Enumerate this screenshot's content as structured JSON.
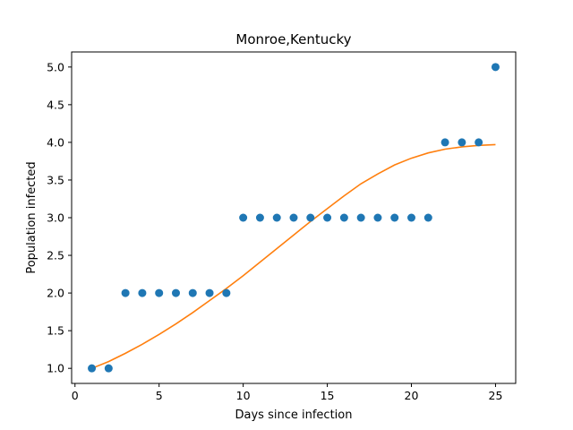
{
  "chart_data": {
    "type": "scatter",
    "title": "Monroe,Kentucky",
    "xlabel": "Days since infection",
    "ylabel": "Population infected",
    "xlim": [
      -0.2,
      26.2
    ],
    "ylim": [
      0.8,
      5.2
    ],
    "xticks": [
      0,
      5,
      10,
      15,
      20,
      25
    ],
    "xtick_labels": [
      "0",
      "5",
      "10",
      "15",
      "20",
      "25"
    ],
    "yticks": [
      1.0,
      1.5,
      2.0,
      2.5,
      3.0,
      3.5,
      4.0,
      4.5,
      5.0
    ],
    "ytick_labels": [
      "1.0",
      "1.5",
      "2.0",
      "2.5",
      "3.0",
      "3.5",
      "4.0",
      "4.5",
      "5.0"
    ],
    "grid": false,
    "series": [
      {
        "kind": "scatter",
        "color": "#1f77b4",
        "x": [
          1,
          2,
          3,
          4,
          5,
          6,
          7,
          8,
          9,
          10,
          11,
          12,
          13,
          14,
          15,
          16,
          17,
          18,
          19,
          20,
          21,
          22,
          23,
          24,
          25
        ],
        "y": [
          1,
          1,
          2,
          2,
          2,
          2,
          2,
          2,
          2,
          3,
          3,
          3,
          3,
          3,
          3,
          3,
          3,
          3,
          3,
          3,
          3,
          4,
          4,
          4,
          5
        ]
      },
      {
        "kind": "line",
        "color": "#ff7f0e",
        "x": [
          1,
          2,
          3,
          4,
          5,
          6,
          7,
          8,
          9,
          10,
          11,
          12,
          13,
          14,
          15,
          16,
          17,
          18,
          19,
          20,
          21,
          22,
          23,
          24,
          25
        ],
        "y": [
          1.0,
          1.09,
          1.2,
          1.32,
          1.45,
          1.59,
          1.74,
          1.9,
          2.06,
          2.23,
          2.41,
          2.59,
          2.77,
          2.95,
          3.12,
          3.29,
          3.45,
          3.58,
          3.7,
          3.79,
          3.86,
          3.91,
          3.94,
          3.96,
          3.97
        ]
      }
    ]
  }
}
